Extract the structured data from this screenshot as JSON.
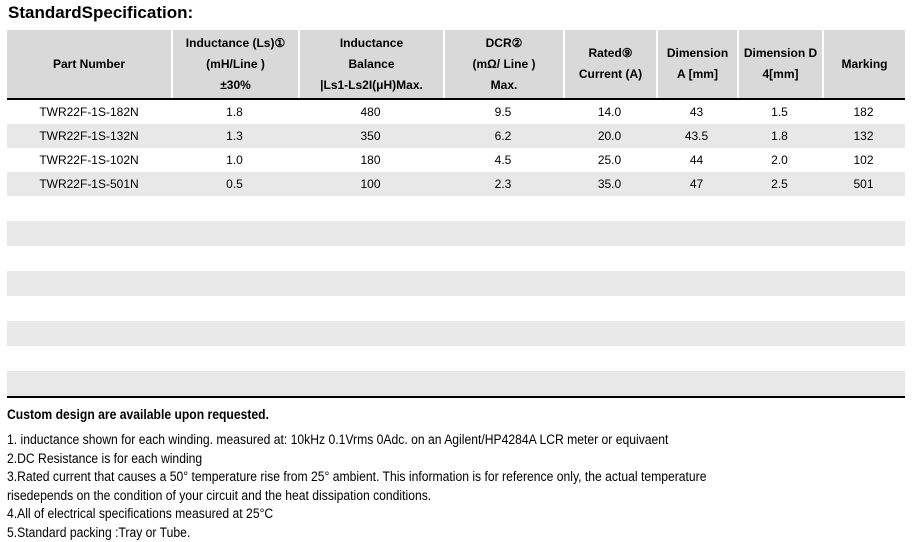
{
  "title": "StandardSpecification:",
  "table": {
    "header": [
      {
        "lines": [
          "Part Number"
        ]
      },
      {
        "lines": [
          "Inductance (Ls)①",
          "(mH/Line )",
          "±30%"
        ]
      },
      {
        "lines": [
          "Inductance",
          "Balance",
          "|Ls1-Ls2I(μH)Max."
        ]
      },
      {
        "lines": [
          "DCR②",
          "(mΩ/ Line )",
          "Max."
        ]
      },
      {
        "lines": [
          "Rated⑨",
          "Current (A)"
        ]
      },
      {
        "lines": [
          "Dimension",
          "A [mm]"
        ]
      },
      {
        "lines": [
          "Dimension D",
          "4[mm]"
        ]
      },
      {
        "lines": [
          "Marking"
        ]
      }
    ],
    "rows": [
      [
        "TWR22F-1S-182N",
        "1.8",
        "480",
        "9.5",
        "14.0",
        "43",
        "1.5",
        "182"
      ],
      [
        "TWR22F-1S-132N",
        "1.3",
        "350",
        "6.2",
        "20.0",
        "43.5",
        "1.8",
        "132"
      ],
      [
        "TWR22F-1S-102N",
        "1.0",
        "180",
        "4.5",
        "25.0",
        "44",
        "2.0",
        "102"
      ],
      [
        "TWR22F-1S-501N",
        "0.5",
        "100",
        "2.3",
        "35.0",
        "47",
        "2.5",
        "501"
      ]
    ],
    "empty_row_count": 8
  },
  "notes": {
    "heading": "Custom design are available upon requested.",
    "items": [
      "1. inductance shown for each winding. measured at: 10kHz 0.1Vrms 0Adc. on an Agilent/HP4284A LCR meter or equivaent",
      "2.DC Resistance is for each winding",
      "3.Rated current that causes a 50° temperature rise from 25° ambient. This information is for reference only, the actual temperature",
      "risedepends on the condition of your circuit and the heat dissipation conditions.",
      "4.All of electrical specifications measured at 25°C",
      "5.Standard packing :Tray or Tube."
    ]
  },
  "colors": {
    "header_bg": "#d9d9d9",
    "alt_row_bg": "#e8e8e8",
    "border": "#000000"
  }
}
